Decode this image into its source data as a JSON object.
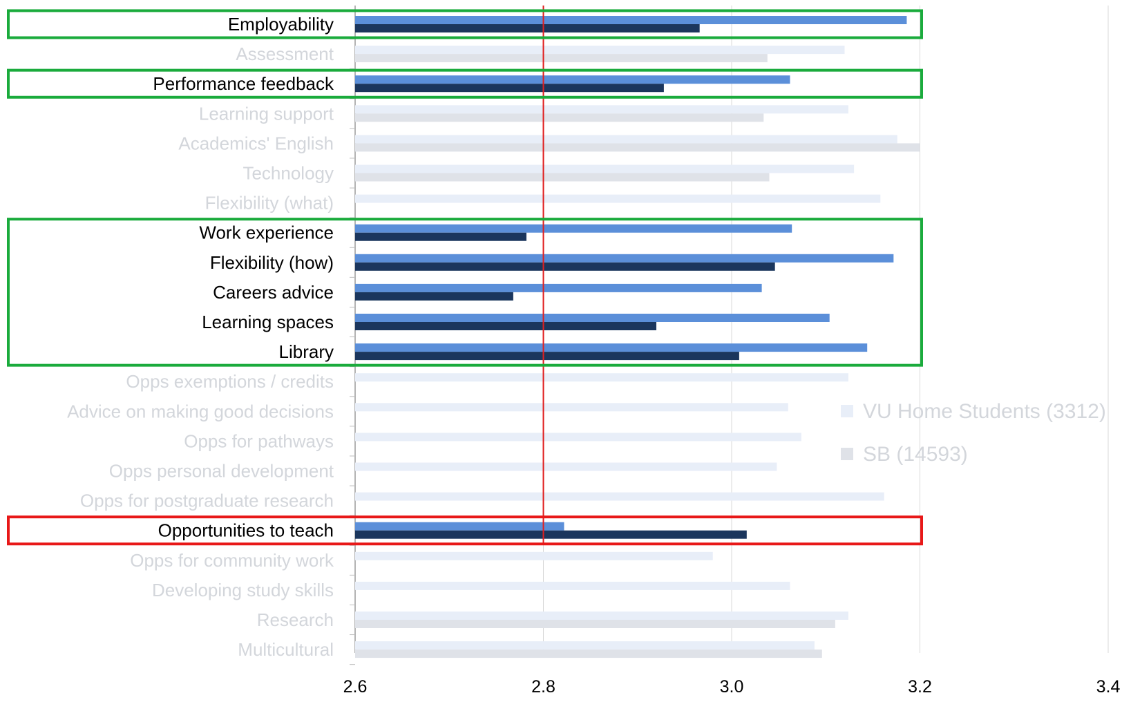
{
  "chart_data": {
    "type": "bar",
    "orientation": "horizontal",
    "xlim": [
      2.6,
      3.4
    ],
    "x_ticks": [
      "2.6",
      "2.8",
      "3.0",
      "3.2",
      "3.4"
    ],
    "grid": "vertical",
    "legend_position": "right",
    "reference_line": {
      "value": 2.8,
      "color": "#e02020"
    },
    "colors": {
      "series_vu_highlight": "#5b8fd9",
      "series_sb_highlight": "#1b365d",
      "series_vu_faded": "#e8eef8",
      "series_sb_faded": "#dfe2e8",
      "label_highlight": "#000000",
      "label_faded": "#d3d6db",
      "box_green": "#1aab3c",
      "box_red": "#e81818"
    },
    "series": [
      {
        "name": "VU Home Students (3312)",
        "key": "vu"
      },
      {
        "name": "SB (14593)",
        "key": "sb"
      }
    ],
    "categories": [
      {
        "label": "Employability",
        "vu": 3.186,
        "sb": 2.966,
        "highlight": true
      },
      {
        "label": "Assessment",
        "vu": 3.12,
        "sb": 3.038,
        "highlight": false
      },
      {
        "label": "Performance feedback",
        "vu": 3.062,
        "sb": 2.928,
        "highlight": true
      },
      {
        "label": "Learning support",
        "vu": 3.124,
        "sb": 3.034,
        "highlight": false
      },
      {
        "label": "Academics' English",
        "vu": 3.176,
        "sb": 3.2,
        "highlight": false
      },
      {
        "label": "Technology",
        "vu": 3.13,
        "sb": 3.04,
        "highlight": false
      },
      {
        "label": "Flexibility (what)",
        "vu": 3.158,
        "sb": null,
        "highlight": false
      },
      {
        "label": "Work experience",
        "vu": 3.064,
        "sb": 2.782,
        "highlight": true
      },
      {
        "label": "Flexibility (how)",
        "vu": 3.172,
        "sb": 3.046,
        "highlight": true
      },
      {
        "label": "Careers advice",
        "vu": 3.032,
        "sb": 2.768,
        "highlight": true
      },
      {
        "label": "Learning spaces",
        "vu": 3.104,
        "sb": 2.92,
        "highlight": true
      },
      {
        "label": "Library",
        "vu": 3.144,
        "sb": 3.008,
        "highlight": true
      },
      {
        "label": "Opps exemptions / credits",
        "vu": 3.124,
        "sb": null,
        "highlight": false
      },
      {
        "label": "Advice on making good decisions",
        "vu": 3.06,
        "sb": null,
        "highlight": false
      },
      {
        "label": "Opps for pathways",
        "vu": 3.074,
        "sb": null,
        "highlight": false
      },
      {
        "label": "Opps personal development",
        "vu": 3.048,
        "sb": null,
        "highlight": false
      },
      {
        "label": "Opps for postgraduate research",
        "vu": 3.162,
        "sb": null,
        "highlight": false
      },
      {
        "label": "Opportunities to teach",
        "vu": 2.822,
        "sb": 3.016,
        "highlight": true
      },
      {
        "label": "Opps for community work",
        "vu": 2.98,
        "sb": null,
        "highlight": false
      },
      {
        "label": "Developing study skills",
        "vu": 3.062,
        "sb": null,
        "highlight": false
      },
      {
        "label": "Research",
        "vu": 3.124,
        "sb": 3.11,
        "highlight": false
      },
      {
        "label": "Multicultural",
        "vu": 3.088,
        "sb": 3.096,
        "highlight": false
      }
    ],
    "highlight_boxes": [
      {
        "from": "Employability",
        "to": "Employability",
        "color": "green"
      },
      {
        "from": "Performance feedback",
        "to": "Performance feedback",
        "color": "green"
      },
      {
        "from": "Work experience",
        "to": "Library",
        "color": "green"
      },
      {
        "from": "Opportunities to teach",
        "to": "Opportunities to teach",
        "color": "red"
      }
    ]
  }
}
